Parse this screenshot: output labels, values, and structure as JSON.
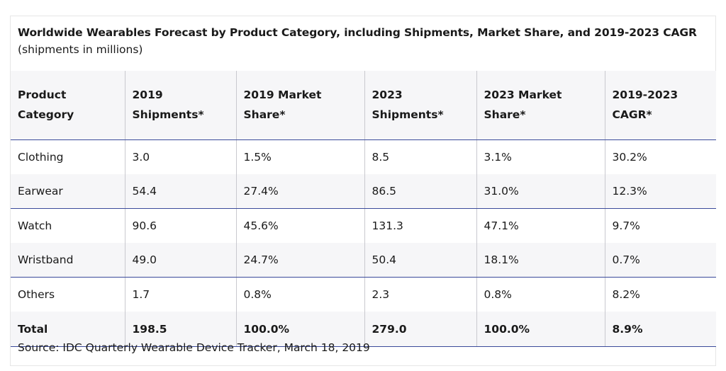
{
  "title": "Worldwide Wearables Forecast by Product Category, including Shipments, Market Share, and 2019-2023 CAGR",
  "subtitle": "(shipments in millions)",
  "headers": [
    [
      "Product",
      "Category"
    ],
    [
      "2019",
      "Shipments*"
    ],
    [
      "2019 Market",
      "Share*"
    ],
    [
      "2023",
      "Shipments*"
    ],
    [
      "2023 Market",
      "Share*"
    ],
    [
      "2019-2023",
      "CAGR*"
    ]
  ],
  "rows": [
    [
      "Clothing",
      "3.0",
      "1.5%",
      "8.5",
      "3.1%",
      "30.2%"
    ],
    [
      "Earwear",
      "54.4",
      "27.4%",
      "86.5",
      "31.0%",
      "12.3%"
    ],
    [
      "Watch",
      "90.6",
      "45.6%",
      "131.3",
      "47.1%",
      "9.7%"
    ],
    [
      "Wristband",
      "49.0",
      "24.7%",
      "50.4",
      "18.1%",
      "0.7%"
    ],
    [
      "Others",
      "1.7",
      "0.8%",
      "2.3",
      "0.8%",
      "8.2%"
    ],
    [
      "Total",
      "198.5",
      "100.0%",
      "279.0",
      "100.0%",
      "8.9%"
    ]
  ],
  "source": "Source: IDC Quarterly Wearable Device Tracker, March 18, 2019",
  "colors": {
    "rule": "#3a4a9a",
    "stripe": "#f6f6f8",
    "divider": "#c9c9cf"
  }
}
